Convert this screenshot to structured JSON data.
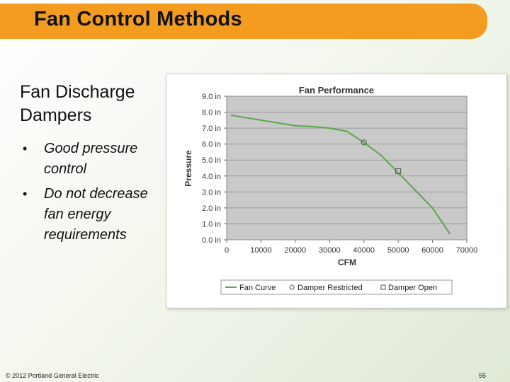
{
  "slide": {
    "title": "Fan Control Methods",
    "heading_line1": "Fan Discharge",
    "heading_line2": "Dampers",
    "bullets": [
      "Good pressure control",
      "Do not decrease fan energy requirements"
    ],
    "bullet_symbol": "•",
    "footer_left": "© 2012 Portland General Electric",
    "page_number": "55",
    "colors": {
      "title_bar": "#f39c20",
      "plot_bg": "#c9c9c9",
      "fan_curve": "#5aa84a"
    }
  },
  "chart_data": {
    "type": "line",
    "title": "Fan Performance",
    "xlabel": "CFM",
    "ylabel": "Pressure",
    "xlim": [
      0,
      70000
    ],
    "ylim": [
      0,
      9
    ],
    "x_ticks": [
      0,
      10000,
      20000,
      30000,
      40000,
      50000,
      60000,
      70000
    ],
    "x_tick_labels": [
      "0",
      "10000",
      "20000",
      "30000",
      "40000",
      "50000",
      "60000",
      "70000"
    ],
    "y_ticks": [
      0,
      1,
      2,
      3,
      4,
      5,
      6,
      7,
      8,
      9
    ],
    "y_tick_labels": [
      "0.0 in",
      "1.0 in",
      "2.0 in",
      "3.0 in",
      "4.0 in",
      "5.0 in",
      "6.0 in",
      "7.0 in",
      "8.0 in",
      "9.0 in"
    ],
    "grid": true,
    "legend_position": "bottom",
    "series": [
      {
        "name": "Fan Curve",
        "style": "line",
        "x": [
          1500,
          10000,
          20000,
          25000,
          30000,
          35000,
          40000,
          45000,
          50000,
          55000,
          60000,
          65000
        ],
        "y": [
          7.8,
          7.5,
          7.15,
          7.1,
          7.0,
          6.8,
          6.1,
          5.3,
          4.2,
          3.1,
          2.0,
          0.4
        ]
      },
      {
        "name": "Damper Restricted",
        "style": "circle-marker",
        "x": [
          40000
        ],
        "y": [
          6.1
        ]
      },
      {
        "name": "Damper Open",
        "style": "square-marker",
        "x": [
          50000
        ],
        "y": [
          4.3
        ]
      }
    ]
  }
}
